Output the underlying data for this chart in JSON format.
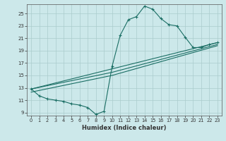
{
  "xlabel": "Humidex (Indice chaleur)",
  "bg_color": "#cce8ea",
  "grid_color": "#aacccc",
  "line_color": "#1a6e64",
  "xlim": [
    -0.5,
    23.5
  ],
  "ylim": [
    8.5,
    26.5
  ],
  "yticks": [
    9,
    11,
    13,
    15,
    17,
    19,
    21,
    23,
    25
  ],
  "xticks": [
    0,
    1,
    2,
    3,
    4,
    5,
    6,
    7,
    8,
    9,
    10,
    11,
    12,
    13,
    14,
    15,
    16,
    17,
    18,
    19,
    20,
    21,
    22,
    23
  ],
  "series1": [
    [
      0,
      12.8
    ],
    [
      1,
      11.7
    ],
    [
      2,
      11.2
    ],
    [
      3,
      11.0
    ],
    [
      4,
      10.8
    ],
    [
      5,
      10.4
    ],
    [
      6,
      10.2
    ],
    [
      7,
      9.8
    ],
    [
      8,
      8.7
    ],
    [
      9,
      9.2
    ],
    [
      10,
      16.5
    ],
    [
      11,
      21.5
    ],
    [
      12,
      24.0
    ],
    [
      13,
      24.5
    ],
    [
      14,
      26.2
    ],
    [
      15,
      25.7
    ],
    [
      16,
      24.2
    ],
    [
      17,
      23.2
    ],
    [
      18,
      23.0
    ],
    [
      19,
      21.2
    ],
    [
      20,
      19.5
    ],
    [
      21,
      19.5
    ],
    [
      22,
      20.0
    ],
    [
      23,
      20.3
    ]
  ],
  "line2": [
    [
      0,
      12.8
    ],
    [
      23,
      20.3
    ]
  ],
  "line3": [
    [
      0,
      12.8
    ],
    [
      10,
      15.5
    ],
    [
      23,
      20.0
    ]
  ],
  "line4": [
    [
      0,
      12.3
    ],
    [
      10,
      15.0
    ],
    [
      23,
      19.8
    ]
  ]
}
